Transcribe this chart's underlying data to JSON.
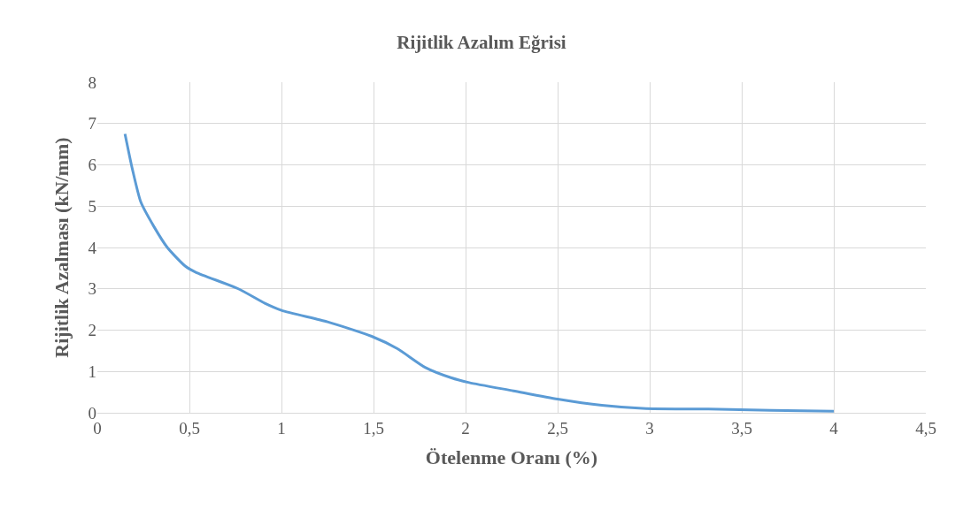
{
  "chart_data": {
    "type": "line",
    "title": "Rijitlik Azalım Eğrisi",
    "xlabel": "Ötelenme Oranı (%)",
    "ylabel": "Rijitlik Azalması (kN/mm)",
    "series": [
      {
        "color": "#5b9bd5",
        "x": [
          0.15,
          0.19,
          0.236,
          0.308,
          0.38,
          0.477,
          0.535,
          0.766,
          0.91,
          1.0,
          1.25,
          1.49,
          1.63,
          1.78,
          1.92,
          2.02,
          2.26,
          2.5,
          2.74,
          2.98,
          3.32,
          3.66,
          4.0
        ],
        "values": [
          6.75,
          5.9,
          5.1,
          4.5,
          4.0,
          3.55,
          3.4,
          3.0,
          2.65,
          2.48,
          2.2,
          1.85,
          1.55,
          1.1,
          0.85,
          0.73,
          0.53,
          0.33,
          0.18,
          0.1,
          0.09,
          0.06,
          0.04
        ]
      }
    ],
    "xlim": [
      0,
      4.5
    ],
    "xticks": [
      0,
      {
        "value": 0.5,
        "label": "0,5"
      },
      1,
      {
        "value": 1.5,
        "label": "1,5"
      },
      2,
      {
        "value": 2.5,
        "label": "2,5"
      },
      3,
      {
        "value": 3.5,
        "label": "3,5"
      },
      4,
      {
        "value": 4.5,
        "label": "4,5"
      }
    ],
    "ylim": [
      0,
      8
    ],
    "yticks": [
      0,
      1,
      2,
      3,
      4,
      5,
      6,
      7,
      8
    ],
    "grid": true,
    "legend": false,
    "marker": "none",
    "line_style": "solid"
  }
}
